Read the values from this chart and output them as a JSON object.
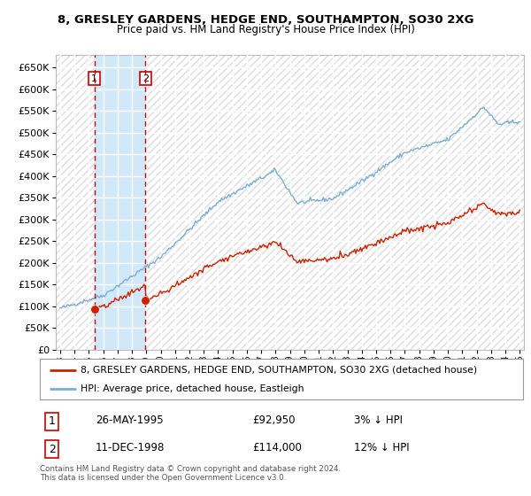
{
  "title1": "8, GRESLEY GARDENS, HEDGE END, SOUTHAMPTON, SO30 2XG",
  "title2": "Price paid vs. HM Land Registry's House Price Index (HPI)",
  "ylim": [
    0,
    680000
  ],
  "yticks": [
    0,
    50000,
    100000,
    150000,
    200000,
    250000,
    300000,
    350000,
    400000,
    450000,
    500000,
    550000,
    600000,
    650000
  ],
  "xlim_start": 1992.7,
  "xlim_end": 2025.3,
  "background_color": "#ffffff",
  "plot_bg_color": "#f5f5f5",
  "grid_color": "#ffffff",
  "legend_entry1": "8, GRESLEY GARDENS, HEDGE END, SOUTHAMPTON, SO30 2XG (detached house)",
  "legend_entry2": "HPI: Average price, detached house, Eastleigh",
  "transaction1_date": "26-MAY-1995",
  "transaction1_price": "£92,950",
  "transaction1_hpi": "3% ↓ HPI",
  "transaction1_x": 1995.39,
  "transaction1_y": 92950,
  "transaction2_date": "11-DEC-1998",
  "transaction2_price": "£114,000",
  "transaction2_hpi": "12% ↓ HPI",
  "transaction2_x": 1998.94,
  "transaction2_y": 114000,
  "vline_color": "#cc0000",
  "shade_color": "#d0e8f8",
  "price_line_color": "#cc2200",
  "hpi_line_color": "#7bafd4",
  "marker_color": "#cc2200",
  "marker_size": 7,
  "footnote": "Contains HM Land Registry data © Crown copyright and database right 2024.\nThis data is licensed under the Open Government Licence v3.0.",
  "xtick_years": [
    1993,
    1994,
    1995,
    1996,
    1997,
    1998,
    1999,
    2000,
    2001,
    2002,
    2003,
    2004,
    2005,
    2006,
    2007,
    2008,
    2009,
    2010,
    2011,
    2012,
    2013,
    2014,
    2015,
    2016,
    2017,
    2018,
    2019,
    2020,
    2021,
    2022,
    2023,
    2024,
    2025
  ]
}
